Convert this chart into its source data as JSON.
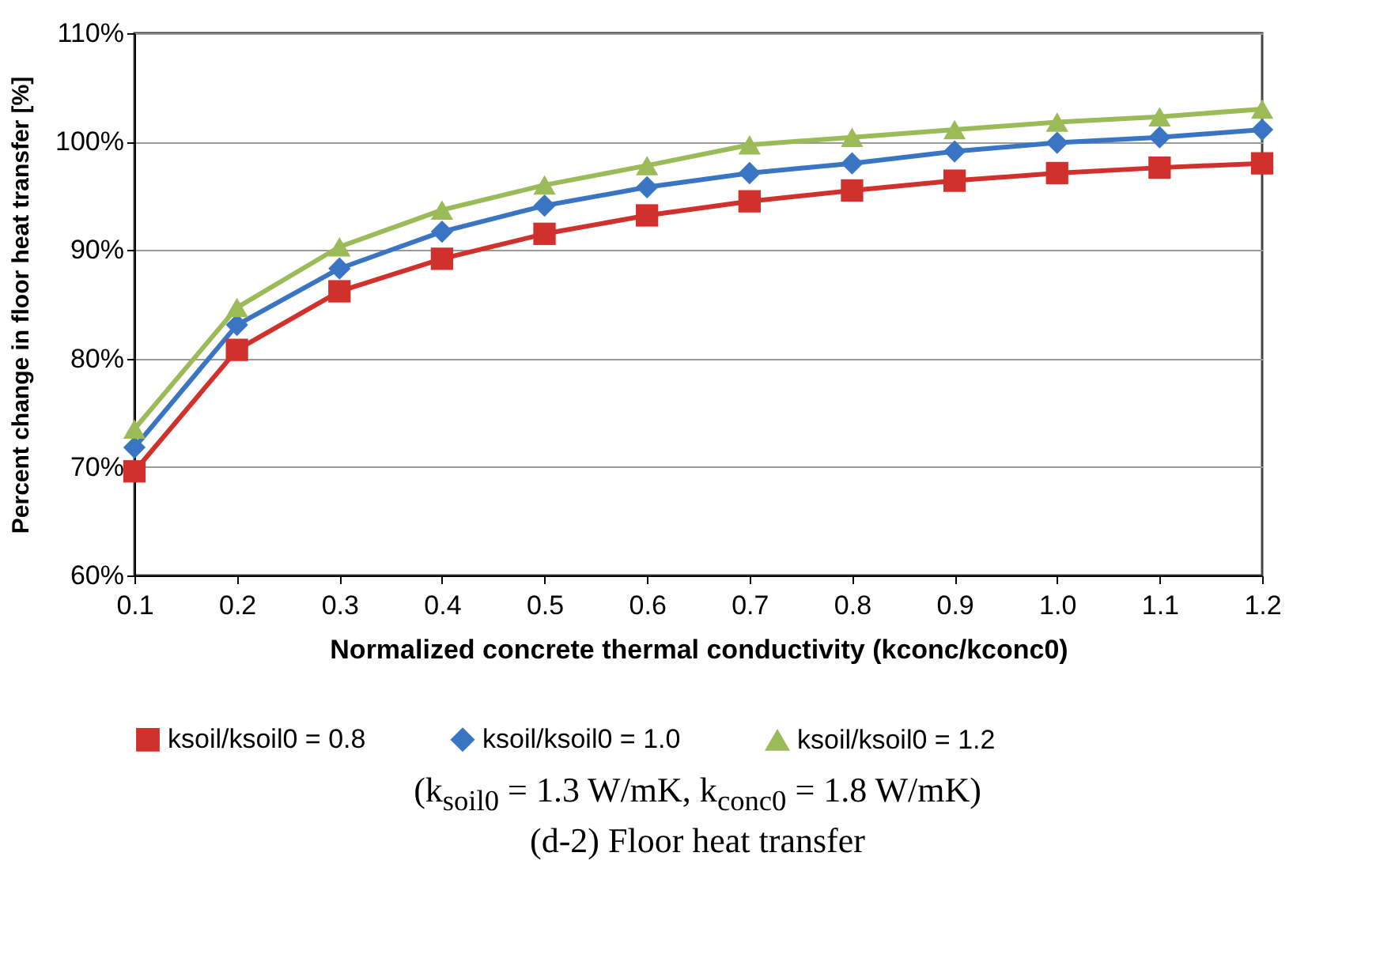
{
  "chart_data": {
    "type": "line",
    "xlabel": "Normalized concrete thermal conductivity (kconc/kconc0)",
    "ylabel": "Percent change in floor heat transfer [%]",
    "categories": [
      "0.1",
      "0.2",
      "0.3",
      "0.4",
      "0.5",
      "0.6",
      "0.7",
      "0.8",
      "0.9",
      "1.0",
      "1.1",
      "1.2"
    ],
    "series": [
      {
        "name": "ksoil/ksoil0 = 0.8",
        "color": "#d0312d",
        "marker": "square",
        "values": [
          69.6,
          80.8,
          86.2,
          89.2,
          91.5,
          93.2,
          94.5,
          95.5,
          96.4,
          97.1,
          97.6,
          98.0
        ]
      },
      {
        "name": "ksoil/ksoil0 = 1.0",
        "color": "#3a75c4",
        "marker": "diamond",
        "values": [
          71.8,
          83.1,
          88.3,
          91.7,
          94.1,
          95.8,
          97.1,
          98.0,
          99.1,
          99.9,
          100.4,
          101.1
        ]
      },
      {
        "name": "ksoil/ksoil0 = 1.2",
        "color": "#9bbb59",
        "marker": "triangle",
        "values": [
          73.5,
          84.7,
          90.3,
          93.7,
          96.0,
          97.8,
          99.7,
          100.4,
          101.1,
          101.8,
          102.3,
          103.0
        ]
      }
    ],
    "ylim": [
      60,
      110
    ],
    "yticks": [
      {
        "value": 60,
        "label": "60%"
      },
      {
        "value": 70,
        "label": "70%"
      },
      {
        "value": 80,
        "label": "80%"
      },
      {
        "value": 90,
        "label": "90%"
      },
      {
        "value": 100,
        "label": "100%"
      },
      {
        "value": 110,
        "label": "110%"
      }
    ],
    "grid": "y",
    "legend": "bottom",
    "line_style": "solid",
    "annotations": [
      "(k$_{soil0}$ = 1.3 W/mK, k$_{conc0}$ = 1.8 W/mK)",
      "(d-2) Floor heat transfer"
    ]
  }
}
